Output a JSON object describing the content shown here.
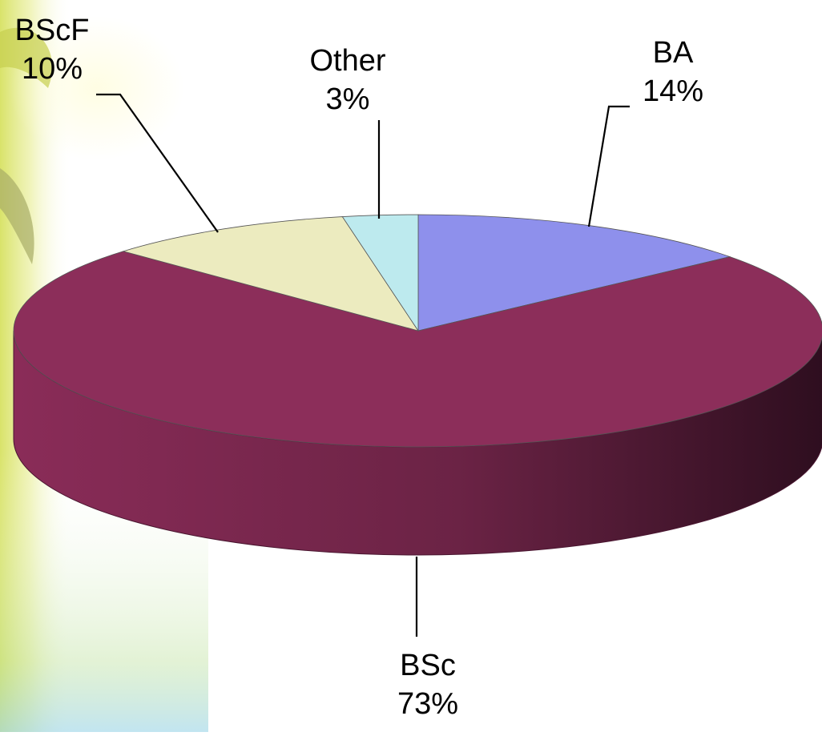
{
  "chart_data": {
    "type": "pie",
    "style": "3d",
    "title": "",
    "slices": [
      {
        "name": "BA",
        "value": 14,
        "label": "14%",
        "color": "#8e90ec"
      },
      {
        "name": "BSc",
        "value": 73,
        "label": "73%",
        "color": "#8c2e5a"
      },
      {
        "name": "BScF",
        "value": 10,
        "label": "10%",
        "color": "#ecebbf"
      },
      {
        "name": "Other",
        "value": 3,
        "label": "3%",
        "color": "#bdeaee"
      }
    ],
    "legend": "none"
  }
}
